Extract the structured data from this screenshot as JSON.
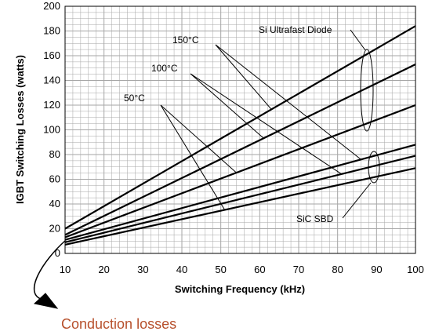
{
  "chart_data": {
    "type": "line",
    "xlabel": "Switching Frequency (kHz)",
    "ylabel": "IGBT Switching Losses (watts)",
    "xlim": [
      10,
      100
    ],
    "ylim": [
      0,
      200
    ],
    "x_ticks": [
      "10",
      "20",
      "30",
      "40",
      "50",
      "60",
      "70",
      "80",
      "90",
      "100"
    ],
    "y_ticks": [
      "0",
      "20",
      "40",
      "60",
      "80",
      "100",
      "120",
      "140",
      "160",
      "180",
      "200"
    ],
    "grid": true,
    "x": [
      10,
      100
    ],
    "series": [
      {
        "group": "Si Ultrafast Diode",
        "temperature": "150°C",
        "values": [
          20,
          184
        ]
      },
      {
        "group": "Si Ultrafast Diode",
        "temperature": "100°C",
        "values": [
          15,
          153
        ]
      },
      {
        "group": "Si Ultrafast Diode",
        "temperature": "50°C",
        "values": [
          13,
          120
        ]
      },
      {
        "group": "SiC SBD",
        "temperature": "150°C",
        "values": [
          11,
          88
        ]
      },
      {
        "group": "SiC SBD",
        "temperature": "100°C",
        "values": [
          9,
          79
        ]
      },
      {
        "group": "SiC SBD",
        "temperature": "50°C",
        "values": [
          7,
          69
        ]
      }
    ],
    "annotations": {
      "temp_150": "150°C",
      "temp_100": "100°C",
      "temp_50": "50°C",
      "si_label": "Si Ultrafast Diode",
      "sic_label": "SiC SBD",
      "conduction_label": "Conduction losses"
    },
    "colors": {
      "lines": "#000000",
      "grid": "#a6a6a6",
      "conduction": "#b7502c"
    }
  }
}
